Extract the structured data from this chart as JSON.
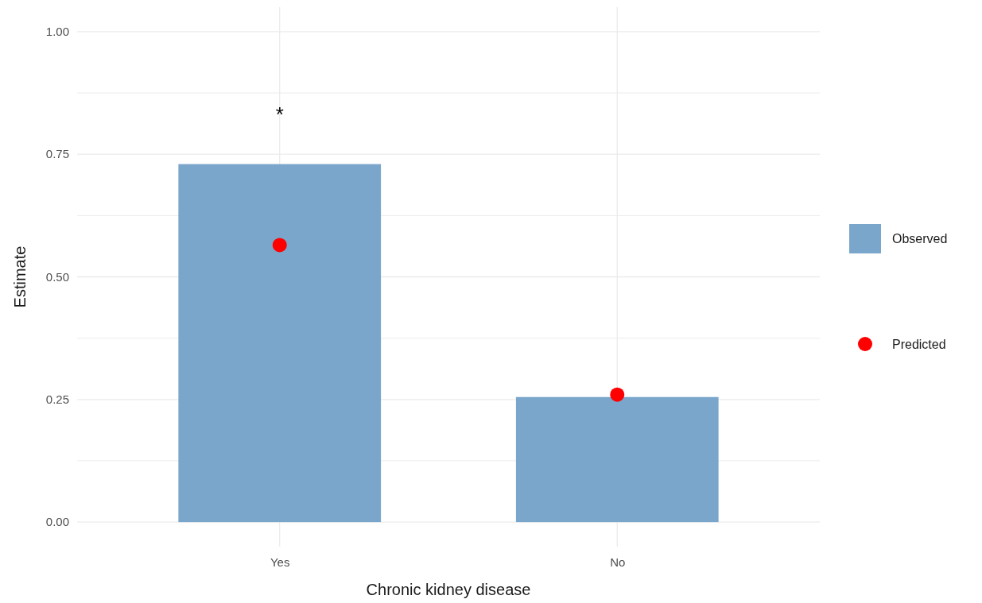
{
  "chart_data": {
    "type": "bar",
    "xlabel": "Chronic kidney disease",
    "ylabel": "Estimate",
    "categories": [
      "Yes",
      "No"
    ],
    "series": [
      {
        "name": "Observed",
        "color": "#7ba6cc",
        "values": [
          0.73,
          0.255
        ]
      },
      {
        "name": "Predicted",
        "type": "scatter",
        "color": "#ff0000",
        "x": [
          "Yes",
          "No"
        ],
        "values": [
          0.565,
          0.26
        ]
      }
    ],
    "ylim": [
      -0.05,
      1.05
    ],
    "yticks": [
      {
        "value": 0,
        "label": "0.00"
      },
      {
        "value": 0.125,
        "label": null
      },
      {
        "value": 0.25,
        "label": "0.25"
      },
      {
        "value": 0.375,
        "label": null
      },
      {
        "value": 0.5,
        "label": "0.50"
      },
      {
        "value": 0.625,
        "label": null
      },
      {
        "value": 0.75,
        "label": "0.75"
      },
      {
        "value": 0.875,
        "label": null
      },
      {
        "value": 1,
        "label": "1.00"
      }
    ],
    "grid": true,
    "legend": "right",
    "marker": "circle",
    "annotations": [
      "*"
    ]
  }
}
